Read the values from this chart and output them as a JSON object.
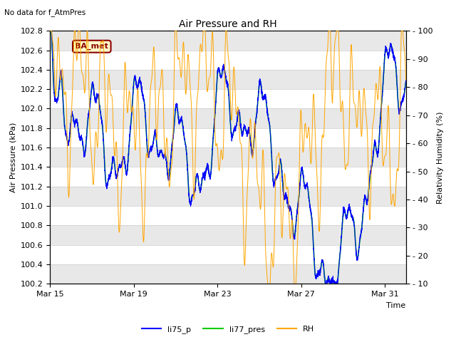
{
  "title": "Air Pressure and RH",
  "subtitle": "No data for f_AtmPres",
  "ylabel_left": "Air Pressure (kPa)",
  "ylabel_right": "Relativity Humidity (%)",
  "xlabel": "Time",
  "ylim_left": [
    100.2,
    102.8
  ],
  "ylim_right": [
    10,
    100
  ],
  "yticks_left": [
    100.2,
    100.4,
    100.6,
    100.8,
    101.0,
    101.2,
    101.4,
    101.6,
    101.8,
    102.0,
    102.2,
    102.4,
    102.6,
    102.8
  ],
  "yticks_right": [
    10,
    20,
    30,
    40,
    50,
    60,
    70,
    80,
    90,
    100
  ],
  "xtick_labels": [
    "Mar 15",
    "Mar 19",
    "Mar 23",
    "Mar 27",
    "Mar 31"
  ],
  "xtick_days": [
    0,
    4,
    8,
    12,
    16
  ],
  "legend_labels": [
    "li75_p",
    "li77_pres",
    "RH"
  ],
  "background_color": "#ffffff",
  "band_color": "#e8e8e8",
  "line_color_blue": "#0000ff",
  "line_color_green": "#00cc00",
  "line_color_orange": "#ffa500",
  "ba_met_label": "BA_met"
}
